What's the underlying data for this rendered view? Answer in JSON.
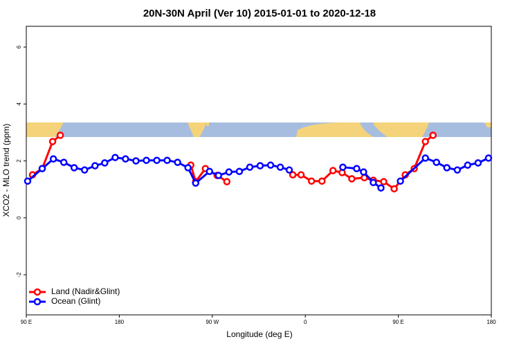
{
  "chart_data": {
    "type": "line",
    "title": "20N-30N April (Ver 10)   2015-01-01 to 2020-12-18",
    "x_label": "Longitude (deg E)",
    "y_label": "XCO2 - MLO trend (ppm)",
    "xlim": [
      90,
      540
    ],
    "ylim": [
      -3.41,
      6.73
    ],
    "xticks": [
      {
        "value": 90,
        "label": "90 E"
      },
      180,
      {
        "value": 270,
        "label": "90 W"
      },
      {
        "value": 360,
        "label": "0"
      },
      {
        "value": 450,
        "label": "90 E"
      },
      {
        "value": 540,
        "label": "180"
      }
    ],
    "yticks": [
      -2,
      0,
      2,
      4,
      6
    ],
    "legend": "bottom-left",
    "series": [
      {
        "name": "Land (Nadir&Glint)",
        "color": "#ff0000",
        "x": [
          96.0,
          105.4,
          115.5,
          122.9,
          null,
          249.2,
          253.9,
          263.3,
          274.7,
          284.1,
          null,
          347.9,
          355.9,
          366.0,
          376.1,
          386.8,
          395.6,
          405.0,
          417.1,
          425.8,
          435.9,
          446.0,
          456.7,
          465.4,
          476.2,
          483.6
        ],
        "values": [
          1.51,
          1.73,
          2.68,
          2.9,
          null,
          1.85,
          1.27,
          1.73,
          1.49,
          1.27,
          null,
          1.51,
          1.51,
          1.29,
          1.29,
          1.66,
          1.59,
          1.37,
          1.41,
          1.32,
          1.27,
          1.02,
          1.51,
          1.73,
          2.68,
          2.9
        ]
      },
      {
        "name": "Ocean (Glint)",
        "color": "#0000ff",
        "x": [
          91.3,
          105.4,
          116.2,
          126.3,
          136.3,
          146.4,
          156.5,
          165.9,
          176.0,
          186.0,
          196.1,
          206.2,
          216.3,
          226.3,
          236.4,
          246.5,
          253.9,
          267.3,
          276.0,
          286.1,
          296.2,
          306.3,
          316.3,
          326.4,
          335.8,
          344.5,
          null,
          396.3,
          409.7,
          416.4,
          425.8,
          433.2,
          null,
          452.0,
          476.2,
          486.9,
          497.0,
          507.1,
          517.1,
          527.2,
          537.3
        ],
        "values": [
          1.29,
          1.73,
          2.07,
          1.95,
          1.76,
          1.68,
          1.83,
          1.93,
          2.12,
          2.07,
          2.0,
          2.02,
          2.02,
          2.02,
          1.95,
          1.76,
          1.22,
          1.63,
          1.49,
          1.61,
          1.63,
          1.78,
          1.83,
          1.85,
          1.78,
          1.68,
          null,
          1.78,
          1.73,
          1.61,
          1.24,
          1.05,
          null,
          1.29,
          2.1,
          1.95,
          1.76,
          1.68,
          1.85,
          1.93,
          2.1
        ]
      }
    ]
  }
}
